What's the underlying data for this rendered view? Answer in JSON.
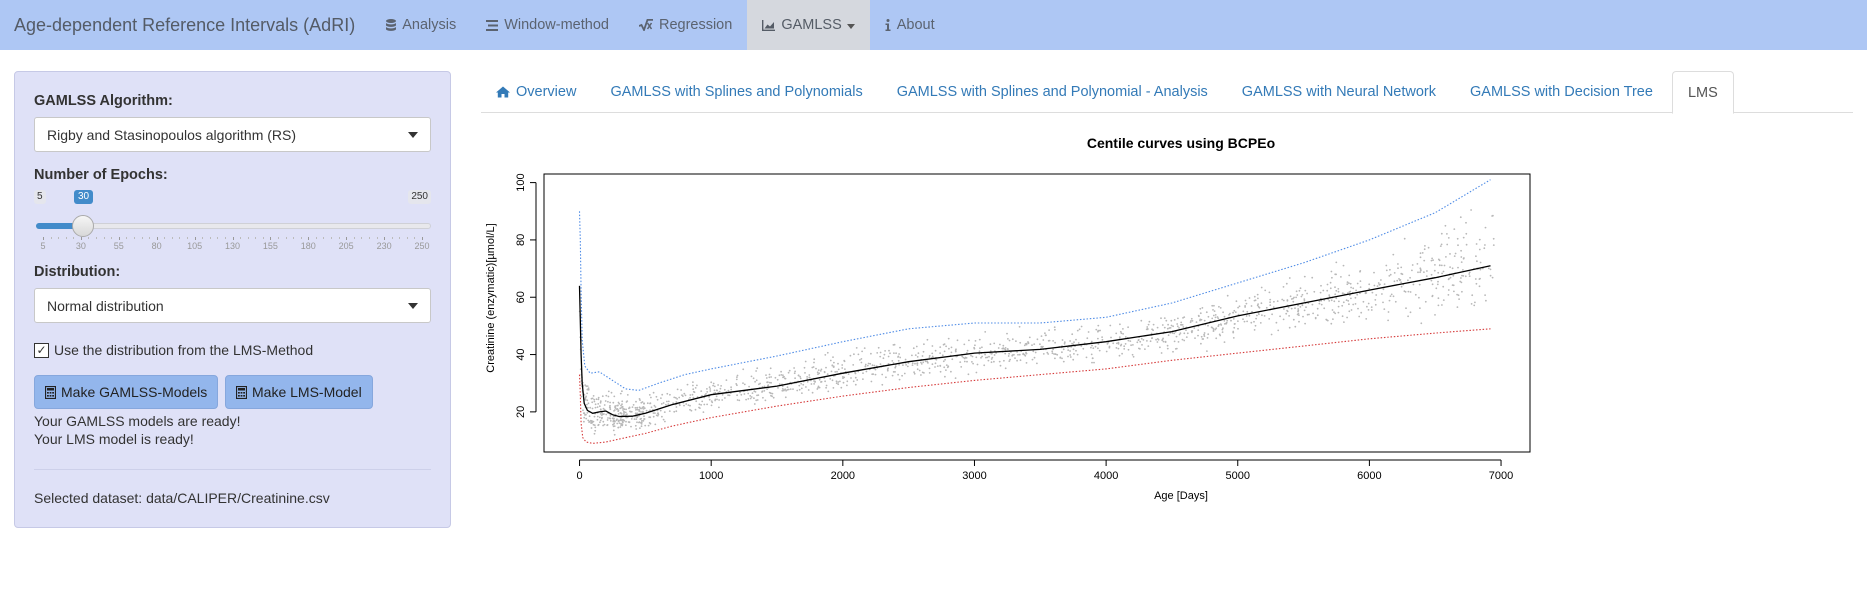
{
  "navbar": {
    "brand": "Age-dependent Reference Intervals (AdRI)",
    "items": [
      {
        "label": "Analysis",
        "icon": "database-icon"
      },
      {
        "label": "Window-method",
        "icon": "list-icon"
      },
      {
        "label": "Regression",
        "icon": "square-root-icon"
      },
      {
        "label": "GAMLSS",
        "icon": "area-chart-icon",
        "active": true
      },
      {
        "label": "About",
        "icon": "info-icon"
      }
    ]
  },
  "sidebar": {
    "algorithm_label": "GAMLSS Algorithm:",
    "algorithm_value": "Rigby and Stasinopoulos algorithm (RS)",
    "epochs_label": "Number of Epochs:",
    "epochs": {
      "min": 5,
      "max": 250,
      "value": 30,
      "min_label": "5",
      "max_label": "250",
      "value_label": "30",
      "tick_labels": [
        "5",
        "30",
        "55",
        "80",
        "105",
        "130",
        "155",
        "180",
        "205",
        "230",
        "250"
      ]
    },
    "distribution_label": "Distribution:",
    "distribution_value": "Normal distribution",
    "lms_checkbox_label": "Use the distribution from the LMS-Method",
    "lms_checkbox_checked": true,
    "make_gamlss_label": "Make GAMLSS-Models",
    "make_lms_label": "Make LMS-Model",
    "status_gamlss": "Your GAMLSS models are ready!",
    "status_lms": "Your LMS model is ready!",
    "dataset_text": "Selected dataset: data/CALIPER/Creatinine.csv"
  },
  "tabs": [
    {
      "label": "Overview",
      "icon": "home-icon"
    },
    {
      "label": "GAMLSS with Splines and Polynomials"
    },
    {
      "label": "GAMLSS with Splines and Polynomial - Analysis"
    },
    {
      "label": "GAMLSS with Neural Network"
    },
    {
      "label": "GAMLSS with Decision Tree"
    },
    {
      "label": "LMS",
      "active": true
    }
  ],
  "chart_data": {
    "type": "scatter",
    "title": "Centile curves using BCPEo",
    "xlabel": "Age [Days]",
    "ylabel": "Creatinine (enzymatic)[µmol/L]",
    "xlim": [
      -270,
      7220
    ],
    "ylim": [
      6,
      103
    ],
    "xticks": [
      0,
      1000,
      2000,
      3000,
      4000,
      5000,
      6000,
      7000
    ],
    "yticks": [
      20,
      40,
      60,
      80,
      100
    ],
    "colors": {
      "points": "#b8b8b8",
      "median": "#000000",
      "upper": "#4f8ce6",
      "lower": "#d63b3b"
    },
    "series": [
      {
        "name": "",
        "style": "solid",
        "points": [
          [
            0,
            64
          ],
          [
            6,
            52
          ],
          [
            12,
            40
          ],
          [
            20,
            30
          ],
          [
            35,
            23
          ],
          [
            60,
            20.5
          ],
          [
            100,
            19.5
          ],
          [
            150,
            20
          ],
          [
            200,
            20.3
          ],
          [
            250,
            19
          ],
          [
            300,
            18.4
          ],
          [
            400,
            18.5
          ],
          [
            500,
            19.5
          ],
          [
            700,
            22.5
          ],
          [
            1000,
            26
          ],
          [
            1500,
            29
          ],
          [
            2000,
            33.5
          ],
          [
            2500,
            37.5
          ],
          [
            3000,
            40.5
          ],
          [
            3500,
            41.8
          ],
          [
            4000,
            44.5
          ],
          [
            4500,
            48
          ],
          [
            5000,
            53.5
          ],
          [
            5500,
            58
          ],
          [
            6000,
            62.5
          ],
          [
            6500,
            66.8
          ],
          [
            6920,
            71
          ]
        ]
      },
      {
        "name": "",
        "style": "dotted",
        "points": [
          [
            0,
            90
          ],
          [
            6,
            80
          ],
          [
            12,
            62
          ],
          [
            20,
            45
          ],
          [
            40,
            36
          ],
          [
            80,
            33.5
          ],
          [
            150,
            34
          ],
          [
            250,
            31
          ],
          [
            350,
            28
          ],
          [
            450,
            27.5
          ],
          [
            600,
            30
          ],
          [
            800,
            33
          ],
          [
            1000,
            35
          ],
          [
            1500,
            39.5
          ],
          [
            2000,
            44.5
          ],
          [
            2500,
            49
          ],
          [
            3000,
            51
          ],
          [
            3500,
            51
          ],
          [
            4000,
            53
          ],
          [
            4500,
            58
          ],
          [
            5000,
            65
          ],
          [
            5500,
            72
          ],
          [
            6000,
            80
          ],
          [
            6500,
            89.5
          ],
          [
            6920,
            101
          ]
        ]
      },
      {
        "name": "",
        "style": "dotted",
        "points": [
          [
            0,
            33
          ],
          [
            6,
            26
          ],
          [
            12,
            16
          ],
          [
            25,
            11
          ],
          [
            50,
            9.5
          ],
          [
            100,
            9
          ],
          [
            200,
            9.5
          ],
          [
            300,
            10.5
          ],
          [
            500,
            12.5
          ],
          [
            700,
            15
          ],
          [
            1000,
            18
          ],
          [
            1500,
            22
          ],
          [
            2000,
            25.5
          ],
          [
            2500,
            28.5
          ],
          [
            3000,
            31
          ],
          [
            3500,
            33
          ],
          [
            4000,
            35
          ],
          [
            4500,
            38
          ],
          [
            5000,
            40.5
          ],
          [
            5500,
            43
          ],
          [
            6000,
            45.5
          ],
          [
            6500,
            47.5
          ],
          [
            6920,
            49
          ]
        ]
      }
    ]
  }
}
